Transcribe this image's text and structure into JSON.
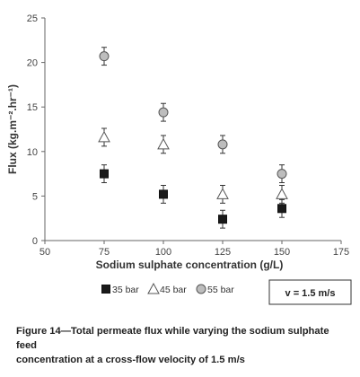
{
  "chart_data": {
    "type": "scatter",
    "xlabel": "Sodium sulphate concentration (g/L)",
    "ylabel": "Flux (kg.m⁻².hr⁻¹)",
    "xlim": [
      50,
      175
    ],
    "ylim": [
      0,
      25
    ],
    "xticks": [
      50,
      75,
      100,
      125,
      150,
      175
    ],
    "yticks": [
      0,
      5,
      10,
      15,
      20,
      25
    ],
    "grid": false,
    "legend_position": "bottom",
    "series": [
      {
        "name": "35 bar",
        "marker": "square",
        "color": "#1a1a1a",
        "x": [
          75,
          100,
          125,
          150
        ],
        "y": [
          7.5,
          5.2,
          2.4,
          3.6
        ],
        "error": [
          1.0,
          1.0,
          1.0,
          1.0
        ]
      },
      {
        "name": "45 bar",
        "marker": "triangle",
        "color": "#ffffff",
        "x": [
          75,
          100,
          125,
          150
        ],
        "y": [
          11.6,
          10.8,
          5.2,
          5.2
        ],
        "error": [
          1.0,
          1.0,
          1.0,
          1.0
        ]
      },
      {
        "name": "55 bar",
        "marker": "circle",
        "color": "#bdbdbd",
        "x": [
          75,
          100,
          125,
          150
        ],
        "y": [
          20.7,
          14.4,
          10.8,
          7.5
        ],
        "error": [
          1.0,
          1.0,
          1.0,
          1.0
        ]
      }
    ],
    "annotation": "v = 1.5 m/s"
  },
  "caption": {
    "line1": "Figure 14—Total permeate flux while varying the sodium sulphate feed",
    "line2": "concentration at a cross-flow velocity of 1.5 m/s"
  }
}
